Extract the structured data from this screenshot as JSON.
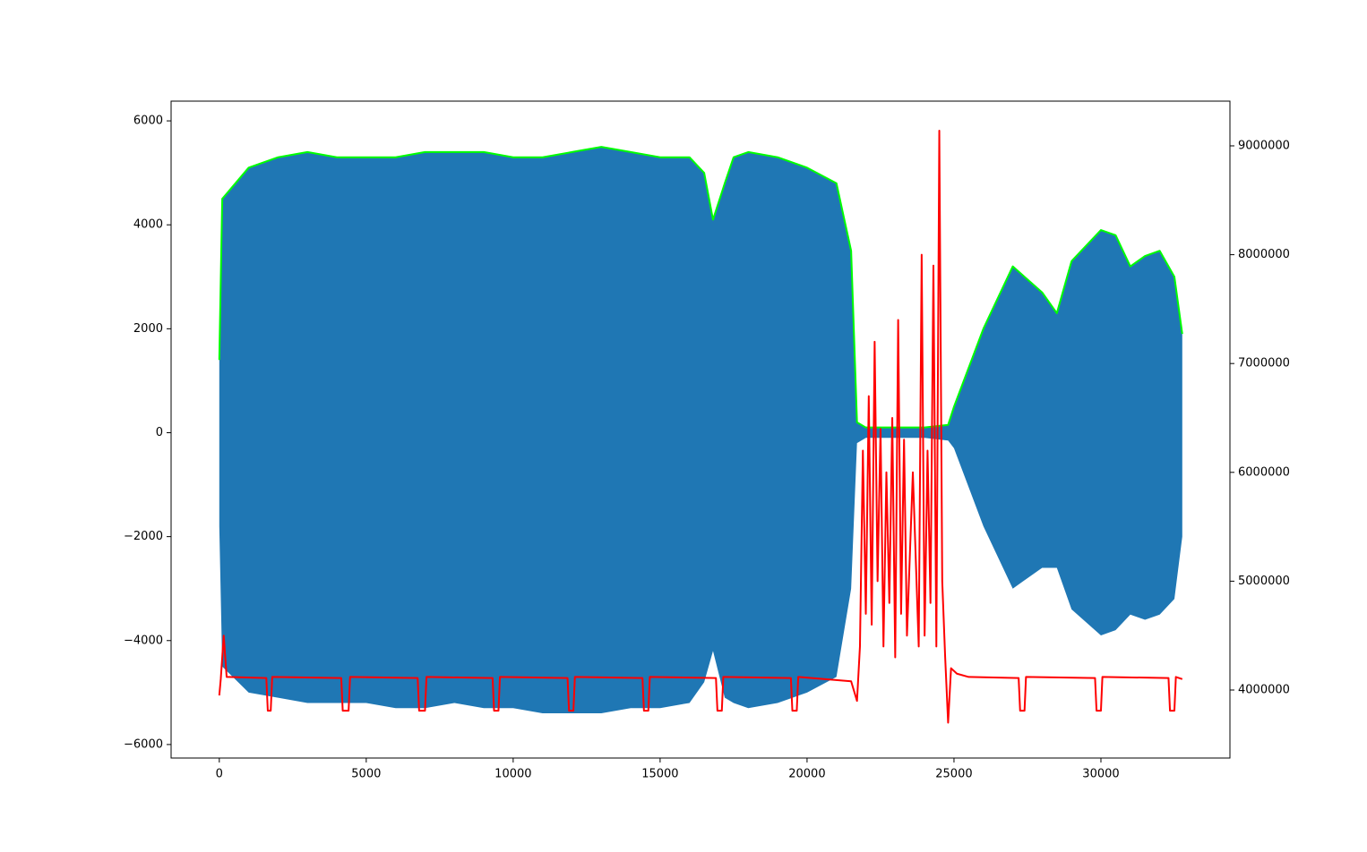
{
  "chart_data": {
    "type": "line",
    "x": [
      0,
      100,
      1000,
      2000,
      3000,
      4000,
      5000,
      6000,
      7000,
      8000,
      9000,
      10000,
      11000,
      12000,
      13000,
      14000,
      15000,
      16000,
      16500,
      16800,
      17200,
      17500,
      18000,
      19000,
      20000,
      21000,
      21500,
      21700,
      22000,
      23000,
      24000,
      24800,
      25000,
      26000,
      27000,
      28000,
      28500,
      29000,
      30000,
      30500,
      31000,
      31500,
      32000,
      32500,
      32768
    ],
    "series": [
      {
        "color": "#1f77b4",
        "fill": true,
        "values": [
          1400,
          4500,
          5100,
          5300,
          5400,
          5300,
          5300,
          5300,
          5400,
          5400,
          5400,
          5300,
          5300,
          5400,
          5500,
          5400,
          5300,
          5300,
          5000,
          4100,
          4800,
          5300,
          5400,
          5300,
          5100,
          4800,
          3500,
          200,
          100,
          100,
          100,
          150,
          500,
          2000,
          3200,
          2700,
          2300,
          3300,
          3900,
          3800,
          3200,
          3400,
          3500,
          3000,
          1900
        ],
        "lower": [
          -1800,
          -4500,
          -5000,
          -5100,
          -5200,
          -5200,
          -5200,
          -5300,
          -5300,
          -5200,
          -5300,
          -5300,
          -5400,
          -5400,
          -5400,
          -5300,
          -5300,
          -5200,
          -4800,
          -4200,
          -5100,
          -5200,
          -5300,
          -5200,
          -5000,
          -4700,
          -3000,
          -200,
          -100,
          -100,
          -100,
          -150,
          -300,
          -1800,
          -3000,
          -2600,
          -2600,
          -3400,
          -3900,
          -3800,
          -3500,
          -3600,
          -3500,
          -3200,
          -2000
        ]
      },
      {
        "color": "#00ff00",
        "values": [
          1400,
          4500,
          5100,
          5300,
          5400,
          5300,
          5300,
          5300,
          5400,
          5400,
          5400,
          5300,
          5300,
          5400,
          5500,
          5400,
          5300,
          5300,
          5000,
          4100,
          4800,
          5300,
          5400,
          5300,
          5100,
          4800,
          3500,
          200,
          100,
          100,
          100,
          150,
          500,
          2000,
          3200,
          2700,
          2300,
          3300,
          3900,
          3800,
          3200,
          3400,
          3500,
          3000,
          1900
        ]
      },
      {
        "color": "#ff0000",
        "axis": "y2",
        "x": [
          0,
          50,
          150,
          250,
          1600,
          1650,
          1750,
          1800,
          4150,
          4200,
          4400,
          4450,
          6750,
          6800,
          7000,
          7050,
          9300,
          9350,
          9500,
          9550,
          11850,
          11900,
          12050,
          12100,
          14400,
          14450,
          14600,
          14650,
          16900,
          16950,
          17100,
          17150,
          19450,
          19500,
          19650,
          19700,
          21500,
          21700,
          21800,
          21900,
          22000,
          22100,
          22200,
          22300,
          22400,
          22500,
          22600,
          22700,
          22800,
          22900,
          23000,
          23100,
          23200,
          23300,
          23400,
          23600,
          23800,
          23900,
          24000,
          24100,
          24200,
          24300,
          24400,
          24500,
          24600,
          24700,
          24800,
          24900,
          25100,
          25500,
          27200,
          27250,
          27400,
          27450,
          29800,
          29850,
          30000,
          30050,
          32300,
          32350,
          32500,
          32550,
          32768
        ],
        "values": [
          3950000,
          4100000,
          4500000,
          4120000,
          4110000,
          3810000,
          3810000,
          4120000,
          4110000,
          3810000,
          3810000,
          4120000,
          4110000,
          3810000,
          3810000,
          4120000,
          4110000,
          3810000,
          3810000,
          4120000,
          4110000,
          3810000,
          3810000,
          4120000,
          4110000,
          3810000,
          3810000,
          4120000,
          4110000,
          3810000,
          3810000,
          4120000,
          4110000,
          3810000,
          3810000,
          4120000,
          4080000,
          3900000,
          4400000,
          6200000,
          4700000,
          6700000,
          4600000,
          7200000,
          5000000,
          6400000,
          4400000,
          6000000,
          4800000,
          6500000,
          4300000,
          7400000,
          4700000,
          6300000,
          4500000,
          6000000,
          4400000,
          8000000,
          4500000,
          6200000,
          4800000,
          7900000,
          4400000,
          9140000,
          5000000,
          4300000,
          3700000,
          4200000,
          4150000,
          4120000,
          4110000,
          3810000,
          3810000,
          4120000,
          4110000,
          3810000,
          3810000,
          4120000,
          4110000,
          3810000,
          3810000,
          4120000,
          4100000
        ]
      }
    ],
    "xlim": [
      -1640,
      34390
    ],
    "xticks": [
      0,
      5000,
      10000,
      15000,
      20000,
      25000,
      30000
    ],
    "ylim": [
      -6260,
      6380
    ],
    "yticks": [
      {
        "value": -6000,
        "label": "−6000"
      },
      {
        "value": -4000,
        "label": "−4000"
      },
      {
        "value": -2000,
        "label": "−2000"
      },
      0,
      2000,
      4000,
      6000
    ],
    "y2lim": [
      3375000,
      9411000
    ],
    "y2ticks": [
      4000000,
      5000000,
      6000000,
      7000000,
      8000000,
      9000000
    ]
  }
}
